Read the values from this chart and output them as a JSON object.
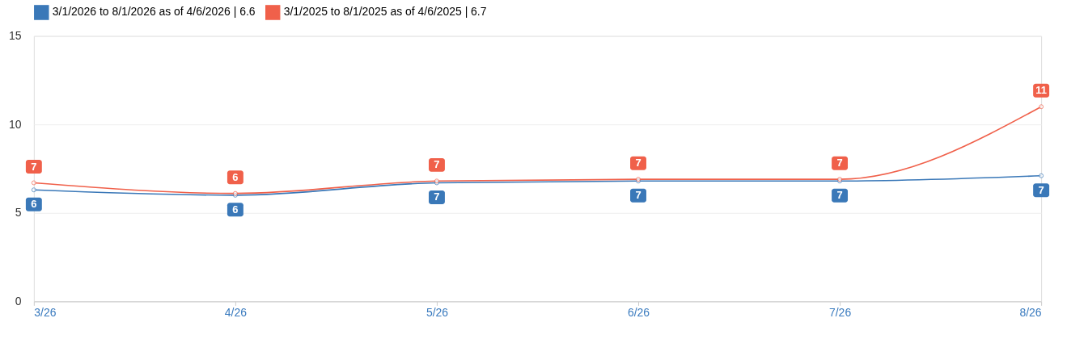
{
  "chart_data": {
    "type": "line",
    "categories": [
      "3/26",
      "4/26",
      "5/26",
      "6/26",
      "7/26",
      "8/26"
    ],
    "series": [
      {
        "name": "3/1/2026 to 8/1/2026 as of 4/6/2026 | 6.6",
        "color": "#3a78b8",
        "values": [
          6.3,
          6.0,
          6.7,
          6.8,
          6.8,
          7.1
        ],
        "value_labels": [
          "6",
          "6",
          "7",
          "7",
          "7",
          "7"
        ]
      },
      {
        "name": "3/1/2025 to 8/1/2025 as of 4/6/2025 | 6.7",
        "color": "#f0604a",
        "values": [
          6.7,
          6.1,
          6.8,
          6.9,
          6.9,
          11.0
        ],
        "value_labels": [
          "7",
          "6",
          "7",
          "7",
          "7",
          "11"
        ]
      }
    ],
    "ylim": [
      0,
      15
    ],
    "yticks": [
      0,
      5,
      10,
      15
    ],
    "grid": "y",
    "legend": "top",
    "marker": "circle",
    "line_style": "solid"
  }
}
